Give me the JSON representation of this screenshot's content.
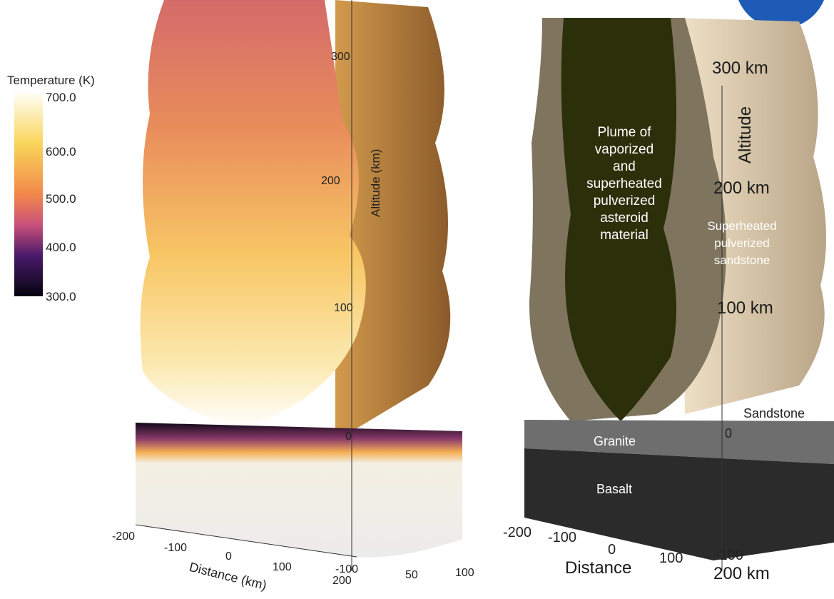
{
  "colorbar": {
    "title": "Temperature (K)",
    "ticks": [
      "700.0",
      "600.0",
      "500.0",
      "400.0",
      "300.0"
    ]
  },
  "left_panel": {
    "altitude_label": "Altitude (km)",
    "altitude_ticks": [
      "300",
      "200",
      "100",
      "0"
    ],
    "distance_label": "Distance (km)",
    "distance_ticks": [
      "-200",
      "-100",
      "0",
      "100",
      "200"
    ],
    "depth_ticks": [
      "-100",
      "50",
      "100"
    ]
  },
  "right_panel": {
    "plume_label": [
      "Plume of",
      "vaporized",
      "and",
      "superheated",
      "pulverized",
      "asteroid",
      "material"
    ],
    "sandstone_label": [
      "Superheated",
      "pulverized",
      "sandstone"
    ],
    "altitude_label": "Altitude",
    "altitude_ticks": [
      "300 km",
      "200 km",
      "100 km"
    ],
    "layers": [
      "Sandstone",
      "Granite",
      "Basalt"
    ],
    "zero_label": "0",
    "distance_label": "Distance",
    "distance_ticks": [
      "-200",
      "-100",
      "0",
      "100"
    ],
    "depth_ticks": [
      "-100",
      "200 km"
    ]
  }
}
